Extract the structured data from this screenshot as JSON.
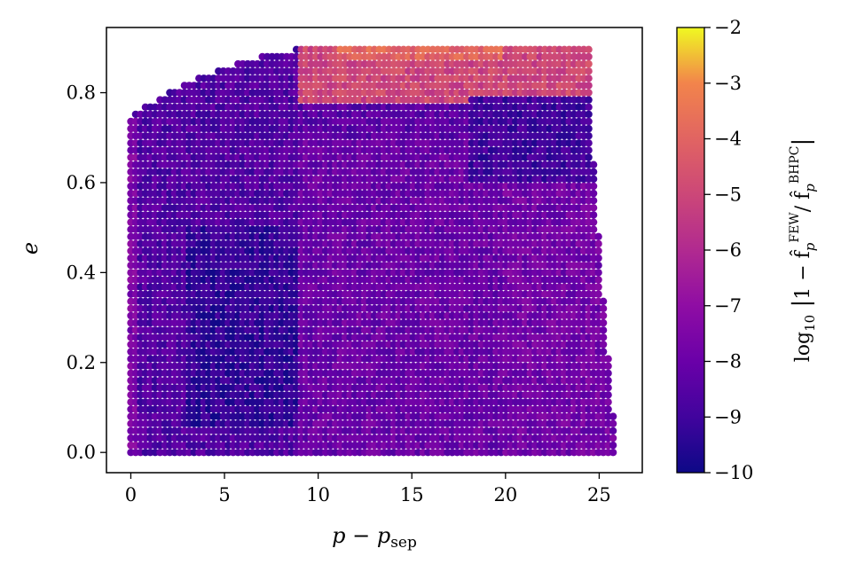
{
  "chart_data": {
    "type": "scatter",
    "title": "",
    "xlabel": "p − p_sep",
    "xlabel_parts": {
      "main": "p − p",
      "subscript": "sep"
    },
    "ylabel": "e",
    "xlim": [
      -1.3,
      27.3
    ],
    "ylim": [
      -0.045,
      0.945
    ],
    "xticks": [
      0,
      5,
      10,
      15,
      20,
      25
    ],
    "xtick_labels": [
      "0",
      "5",
      "10",
      "15",
      "20",
      "25"
    ],
    "yticks": [
      0.0,
      0.2,
      0.4,
      0.6,
      0.8
    ],
    "ytick_labels": [
      "0.0",
      "0.2",
      "0.4",
      "0.6",
      "0.8"
    ],
    "grid": false,
    "colorbar": {
      "label": "log10 |1 − f̂_p^FEW / f̂_p^BHPC|",
      "label_parts": {
        "log": "log",
        "log_sub": "10",
        "body": "1 − f̂",
        "p1": "p",
        "few": "FEW",
        "slash": "/ f̂",
        "p2": "p",
        "bhpc": "BHPC"
      },
      "colormap": "plasma",
      "range": [
        -10,
        -2
      ],
      "ticks": [
        -10,
        -9,
        -8,
        -7,
        -6,
        -5,
        -4,
        -3,
        -2
      ],
      "tick_labels": [
        "−10",
        "−9",
        "−8",
        "−7",
        "−6",
        "−5",
        "−4",
        "−3",
        "−2"
      ]
    },
    "domain": {
      "x_range": [
        0,
        25.9
      ],
      "e_range": [
        0,
        0.9
      ],
      "left_boundary_points": [
        [
          0,
          0.75
        ],
        [
          1,
          0.775
        ],
        [
          2,
          0.8
        ],
        [
          3,
          0.82
        ],
        [
          4,
          0.84
        ],
        [
          5,
          0.855
        ],
        [
          6,
          0.87
        ],
        [
          7,
          0.88
        ],
        [
          8,
          0.89
        ],
        [
          9,
          0.9
        ]
      ],
      "right_boundary_points": [
        [
          24.5,
          0.9
        ],
        [
          24.6,
          0.7
        ],
        [
          25.3,
          0.3
        ],
        [
          25.9,
          0.0
        ]
      ]
    },
    "value_regions": [
      {
        "x_range": [
          0,
          0.3
        ],
        "e_range": [
          0.0,
          0.75
        ],
        "log10_error": -7.5
      },
      {
        "x_range": [
          0.3,
          9
        ],
        "e_range": [
          0.0,
          0.9
        ],
        "log10_error": -8.6
      },
      {
        "x_range": [
          3,
          9
        ],
        "e_range": [
          0.05,
          0.5
        ],
        "log10_error": -9.3
      },
      {
        "x_range": [
          9,
          24
        ],
        "e_range": [
          0.0,
          0.7
        ],
        "log10_error": -8.0
      },
      {
        "x_range": [
          20,
          25.9
        ],
        "e_range": [
          0.0,
          0.6
        ],
        "log10_error": -7.8
      },
      {
        "x_range": [
          9,
          24.5
        ],
        "e_range": [
          0.78,
          0.9
        ],
        "log10_error": -5.0
      },
      {
        "x_range": [
          11,
          20
        ],
        "e_range": [
          0.87,
          0.9
        ],
        "log10_error": -4.0
      },
      {
        "x_range": [
          18,
          24.5
        ],
        "e_range": [
          0.6,
          0.8
        ],
        "log10_error": -9.0
      }
    ]
  }
}
